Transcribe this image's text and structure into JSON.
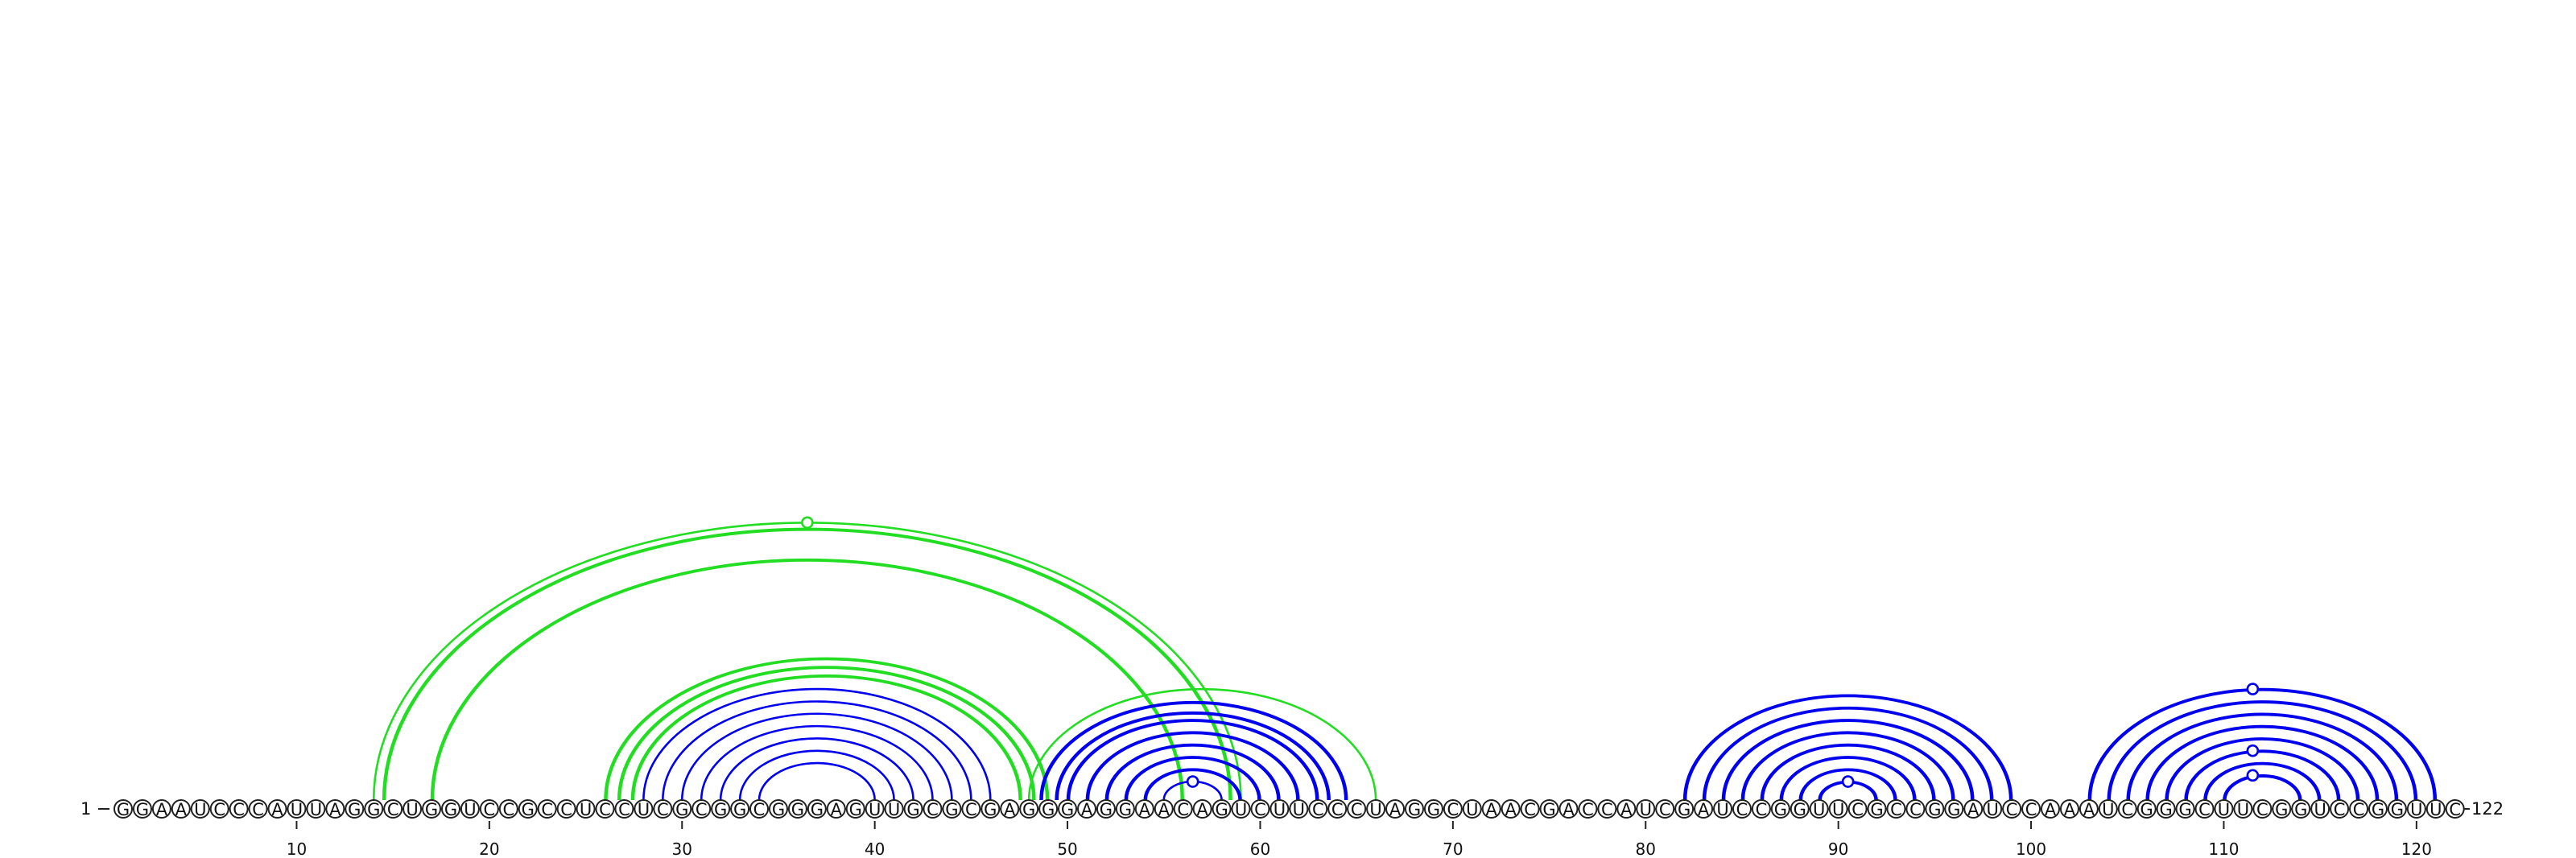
{
  "sequence": "GGAAUCCCAUUAGGCUGGUCCGCCUCCUCGCGGCGGGAGUUGCGCGAGGGAGGAACAGUCUUCCCUAGGCUAACGACCAUCGAUCCGGUUCGCCGGAUCCAAAUCGGGCUUCGGUCCGGUUC",
  "start_label": "1",
  "end_label": "122",
  "ticks": [
    {
      "position": 10,
      "label": "10"
    },
    {
      "position": 20,
      "label": "20"
    },
    {
      "position": 30,
      "label": "30"
    },
    {
      "position": 40,
      "label": "40"
    },
    {
      "position": 50,
      "label": "50"
    },
    {
      "position": 60,
      "label": "60"
    },
    {
      "position": 70,
      "label": "70"
    },
    {
      "position": 80,
      "label": "80"
    },
    {
      "position": 90,
      "label": "90"
    },
    {
      "position": 100,
      "label": "100"
    },
    {
      "position": 110,
      "label": "110"
    },
    {
      "position": 120,
      "label": "120"
    }
  ],
  "colors": {
    "nested_pairs": "#0000ee",
    "pseudoknot_pairs": "#22dd22"
  },
  "arc_groups": [
    {
      "name": "pseudoknot-outer-single",
      "color": "pseudoknot",
      "pairs": [
        [
          14,
          59
        ]
      ],
      "doubled": false
    },
    {
      "name": "pseudoknot-outer-doubled",
      "color": "pseudoknot",
      "pairs": [
        [
          14.5,
          58.5
        ],
        [
          17,
          56
        ]
      ],
      "doubled": true
    },
    {
      "name": "pseudoknot-mid-doubled",
      "color": "pseudoknot",
      "pairs": [
        [
          26,
          49
        ],
        [
          26.7,
          48.3
        ],
        [
          27.4,
          47.6
        ]
      ],
      "doubled": true
    },
    {
      "name": "stem-28-46",
      "color": "nested",
      "pairs": [
        [
          28,
          46
        ],
        [
          29,
          45
        ],
        [
          30,
          44
        ],
        [
          31,
          43
        ],
        [
          32,
          42
        ],
        [
          33,
          41
        ],
        [
          34,
          40
        ]
      ],
      "doubled": false
    },
    {
      "name": "pseudoknot-right-single",
      "color": "pseudoknot",
      "pairs": [
        [
          48,
          66
        ]
      ],
      "doubled": false
    },
    {
      "name": "stem-48-64",
      "color": "nested",
      "pairs": [
        [
          48.6,
          64.5
        ],
        [
          49.4,
          63.6
        ],
        [
          50,
          63
        ],
        [
          51,
          62
        ],
        [
          52,
          61
        ],
        [
          53,
          60
        ],
        [
          54,
          59
        ]
      ],
      "doubled": true
    },
    {
      "name": "hairpin-56",
      "color": "nested",
      "pairs": [
        [
          55,
          58
        ]
      ],
      "doubled": false
    },
    {
      "name": "stem-83-99",
      "color": "nested",
      "pairs": [
        [
          82,
          99
        ],
        [
          83,
          98
        ],
        [
          84,
          97
        ],
        [
          85,
          96
        ],
        [
          86,
          95
        ],
        [
          87,
          94
        ],
        [
          88,
          93
        ],
        [
          89,
          92
        ]
      ],
      "doubled": true
    },
    {
      "name": "stem-103-121",
      "color": "nested",
      "pairs": [
        [
          103,
          121
        ],
        [
          104,
          120
        ],
        [
          105,
          119
        ],
        [
          106,
          118
        ],
        [
          107,
          117
        ],
        [
          108,
          116
        ],
        [
          109,
          115
        ],
        [
          110,
          114
        ]
      ],
      "doubled": true
    }
  ],
  "loop_markers": [
    {
      "position": 36.5,
      "apex_of": [
        14,
        59
      ],
      "color": "pseudoknot"
    },
    {
      "position": 56.5,
      "apex_of": [
        55,
        58
      ],
      "color": "nested"
    },
    {
      "position": 90.5,
      "apex_of": [
        89,
        92
      ],
      "color": "nested"
    },
    {
      "position": 111.5,
      "apex_of": [
        103,
        121
      ],
      "color": "nested"
    },
    {
      "position": 111.5,
      "apex_of": [
        108,
        116
      ],
      "color": "nested"
    },
    {
      "position": 111.5,
      "apex_of": [
        110,
        114
      ],
      "color": "nested"
    }
  ]
}
